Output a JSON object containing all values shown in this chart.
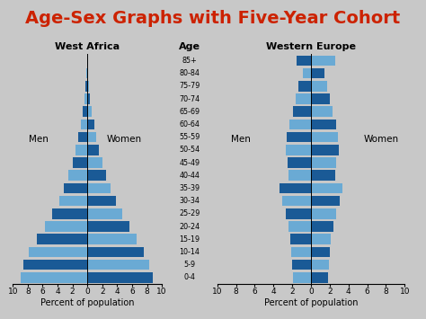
{
  "title": "Age-Sex Graphs with Five-Year Cohort",
  "title_color": "#cc2200",
  "background_color": "#c8c8c8",
  "age_labels": [
    "85+",
    "80-84",
    "75-79",
    "70-74",
    "65-69",
    "60-64",
    "55-59",
    "50-54",
    "45-49",
    "40-44",
    "35-39",
    "30-34",
    "25-29",
    "20-24",
    "15-19",
    "10-14",
    "5-9",
    "0-4"
  ],
  "west_africa": {
    "title": "West Africa",
    "men": [
      0.05,
      0.15,
      0.25,
      0.4,
      0.6,
      0.9,
      1.2,
      1.6,
      2.0,
      2.5,
      3.1,
      3.8,
      4.7,
      5.7,
      6.8,
      7.8,
      8.6,
      9.0
    ],
    "women": [
      0.05,
      0.15,
      0.25,
      0.4,
      0.6,
      0.9,
      1.2,
      1.6,
      2.0,
      2.5,
      3.1,
      3.8,
      4.7,
      5.7,
      6.6,
      7.6,
      8.3,
      8.8
    ]
  },
  "western_europe": {
    "title": "Western Europe",
    "men": [
      1.5,
      0.9,
      1.3,
      1.6,
      1.9,
      2.3,
      2.6,
      2.7,
      2.5,
      2.4,
      3.4,
      3.1,
      2.7,
      2.4,
      2.2,
      2.1,
      2.0,
      1.9
    ],
    "women": [
      2.6,
      1.4,
      1.7,
      2.0,
      2.3,
      2.7,
      2.9,
      3.0,
      2.7,
      2.6,
      3.4,
      3.1,
      2.7,
      2.4,
      2.1,
      2.0,
      1.9,
      1.8
    ]
  },
  "bar_dark": "#1a5a96",
  "bar_light": "#6aaad4",
  "xlabel": "Percent of population",
  "xlim": 10,
  "title_fontsize": 14
}
